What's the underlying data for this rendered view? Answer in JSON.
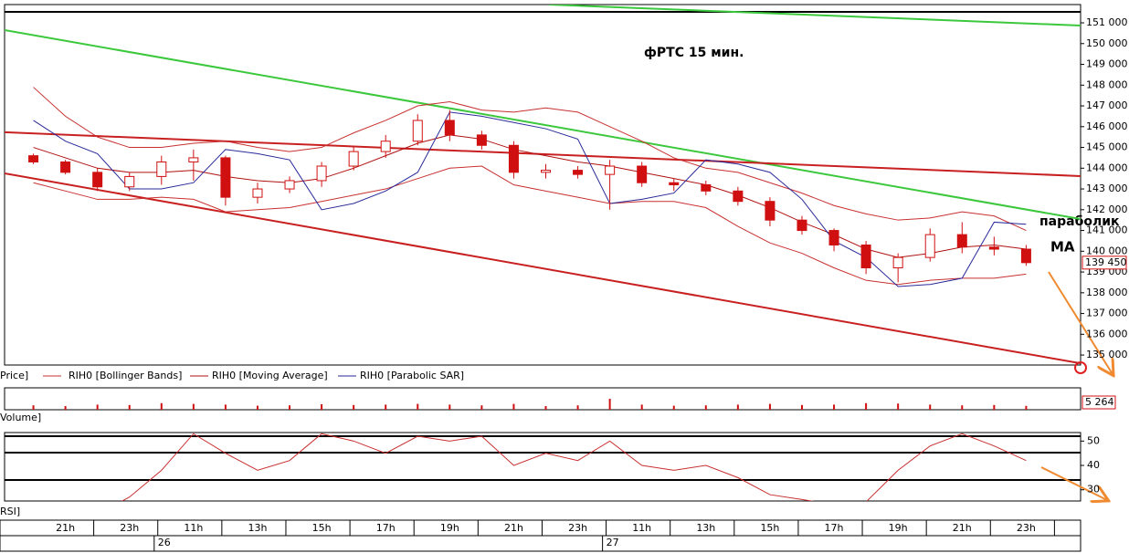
{
  "chart_data": [
    {
      "type": "candlestick",
      "title": "фРТС   15 мин.",
      "annotations": [
        "параболик",
        "MA"
      ],
      "categories": [
        null,
        "21h",
        null,
        "23h",
        null,
        "11h",
        null,
        "13h",
        null,
        "15h",
        null,
        "17h",
        null,
        "19h",
        null,
        "21h",
        null,
        "23h",
        null,
        "11h",
        null,
        "13h",
        null,
        "15h",
        null,
        "17h",
        null,
        "19h",
        null,
        "21h",
        null,
        "23h"
      ],
      "date_labels": [
        null,
        null,
        null,
        null,
        "26",
        null,
        null,
        null,
        null,
        null,
        null,
        null,
        null,
        null,
        null,
        null,
        null,
        null,
        "27",
        null,
        null,
        null,
        null,
        null,
        null,
        null,
        null,
        null,
        null,
        null,
        null,
        null
      ],
      "xlim": [
        -0.9,
        32.7
      ],
      "ylim": [
        134520,
        151880
      ],
      "yticks": [
        {
          "value": 135000,
          "label": "135 000"
        },
        {
          "value": 136000,
          "label": "136 000"
        },
        {
          "value": 137000,
          "label": "137 000"
        },
        {
          "value": 138000,
          "label": "138 000"
        },
        {
          "value": 139000,
          "label": "139 000"
        },
        {
          "value": 140000,
          "label": "140 000"
        },
        {
          "value": 141000,
          "label": "141 000"
        },
        {
          "value": 142000,
          "label": "142 000"
        },
        {
          "value": 143000,
          "label": "143 000"
        },
        {
          "value": 144000,
          "label": "144 000"
        },
        {
          "value": 145000,
          "label": "145 000"
        },
        {
          "value": 146000,
          "label": "146 000"
        },
        {
          "value": 147000,
          "label": "147 000"
        },
        {
          "value": 148000,
          "label": "148 000"
        },
        {
          "value": 149000,
          "label": "149 000"
        },
        {
          "value": 150000,
          "label": "150 000"
        },
        {
          "value": 151000,
          "label": "151 000"
        }
      ],
      "last_price": {
        "value": 139450,
        "label": "139 450"
      },
      "name": "Price]",
      "color": "#d01010",
      "open": [
        144600,
        144300,
        143800,
        143100,
        143600,
        144300,
        144500,
        142600,
        143000,
        143400,
        144100,
        144800,
        145300,
        146300,
        145600,
        145100,
        143800,
        143900,
        143700,
        144100,
        143300,
        143200,
        142900,
        142400,
        141500,
        141000,
        140300,
        139200,
        139700,
        140800,
        140200,
        140100
      ],
      "high": [
        144700,
        144400,
        144000,
        143800,
        144600,
        144900,
        144600,
        143300,
        143600,
        144300,
        145000,
        145600,
        146600,
        146800,
        145800,
        145300,
        144200,
        144100,
        144400,
        144300,
        143500,
        143400,
        143100,
        142600,
        141700,
        141100,
        140500,
        139900,
        141100,
        141400,
        140700,
        140300
      ],
      "low": [
        144200,
        143700,
        142900,
        142900,
        143200,
        143400,
        142200,
        142300,
        142800,
        143100,
        143900,
        144500,
        145100,
        145300,
        144900,
        143500,
        143500,
        143500,
        142000,
        143100,
        142900,
        142700,
        142200,
        141200,
        140800,
        140000,
        138900,
        138500,
        139500,
        139900,
        139800,
        139300
      ],
      "close": [
        144300,
        143800,
        143100,
        143600,
        144300,
        144500,
        142600,
        143000,
        143400,
        144100,
        144800,
        145300,
        146300,
        145600,
        145100,
        143800,
        143900,
        143700,
        144100,
        143300,
        143200,
        142900,
        142400,
        141500,
        141000,
        140300,
        139200,
        139700,
        140800,
        140200,
        140100,
        139450
      ],
      "series": [
        {
          "name": "RIH0 [Bollinger Bands]",
          "color": "#c83030",
          "values": [
            147900,
            146500,
            145500,
            145000,
            145000,
            145200,
            145300,
            145000,
            144800,
            145000,
            145700,
            146300,
            147000,
            147200,
            146800,
            146700,
            146900,
            146700,
            146000,
            145300,
            144500,
            144000,
            143800,
            143300,
            142800,
            142200,
            141800,
            141500,
            141600,
            141900,
            141700,
            141000
          ],
          "lower": [
            143300,
            142900,
            142500,
            142500,
            142600,
            142500,
            141900,
            142000,
            142100,
            142400,
            142700,
            143000,
            143500,
            144000,
            144100,
            143200,
            142900,
            142600,
            142300,
            142400,
            142400,
            142100,
            141200,
            140400,
            139900,
            139200,
            138600,
            138400,
            138600,
            138700,
            138700,
            138900
          ]
        },
        {
          "name": "RIH0 [Moving Average]",
          "color": "#b01010",
          "values": [
            145000,
            144500,
            144000,
            143800,
            143800,
            143900,
            143600,
            143400,
            143300,
            143500,
            144000,
            144600,
            145200,
            145600,
            145400,
            144900,
            144600,
            144300,
            144100,
            143800,
            143500,
            143200,
            142700,
            142100,
            141400,
            140800,
            140100,
            139700,
            139900,
            140200,
            140300,
            140100
          ]
        },
        {
          "name": "RIH0 [Parabolic SAR]",
          "color": "#2a2a9a",
          "values": [
            146300,
            145300,
            144700,
            143000,
            143000,
            143300,
            144900,
            144700,
            144400,
            142000,
            142300,
            142900,
            143800,
            146700,
            146500,
            146200,
            145900,
            145400,
            142300,
            142500,
            142800,
            144400,
            144200,
            143800,
            142500,
            140500,
            139700,
            138300,
            138400,
            138700,
            141400,
            141300
          ]
        }
      ],
      "trend_lines": [
        {
          "color": "#3cc83c",
          "points": [
            [
              16.1,
              151880
            ],
            [
              32.7,
              150870
            ]
          ]
        },
        {
          "color": "#3cc83c",
          "points": [
            [
              -0.9,
              150650
            ],
            [
              32.7,
              141550
            ]
          ]
        },
        {
          "color": "#c82020",
          "points": [
            [
              -0.9,
              145730
            ],
            [
              32.7,
              143620
            ]
          ]
        },
        {
          "color": "#c82020",
          "points": [
            [
              -0.9,
              143750
            ],
            [
              32.7,
              134600
            ]
          ]
        }
      ]
    },
    {
      "type": "bar",
      "name": "Volume]",
      "color": "#d01010",
      "ylim": [
        0,
        30000
      ],
      "values": [
        6000,
        5000,
        7000,
        6500,
        9000,
        8000,
        7000,
        5500,
        6000,
        7500,
        6500,
        7000,
        8000,
        7000,
        6000,
        8000,
        5000,
        6000,
        15000,
        7000,
        5500,
        6000,
        7000,
        8000,
        6500,
        7000,
        9000,
        8500,
        7000,
        6000,
        6500,
        5264
      ],
      "last_value": {
        "value": 5264,
        "label": "5 264"
      }
    },
    {
      "type": "line",
      "name": "RSI]",
      "color": "#c83030",
      "ylim": [
        25.4,
        53.5
      ],
      "yticks": [
        30,
        40,
        50
      ],
      "values": [
        22,
        20,
        20,
        27,
        38,
        53,
        45,
        38,
        42,
        53,
        50,
        45,
        52,
        50,
        52,
        40,
        45,
        42,
        50,
        40,
        38,
        40,
        35,
        28,
        26,
        24,
        25,
        38,
        48,
        53,
        48,
        42
      ]
    }
  ]
}
